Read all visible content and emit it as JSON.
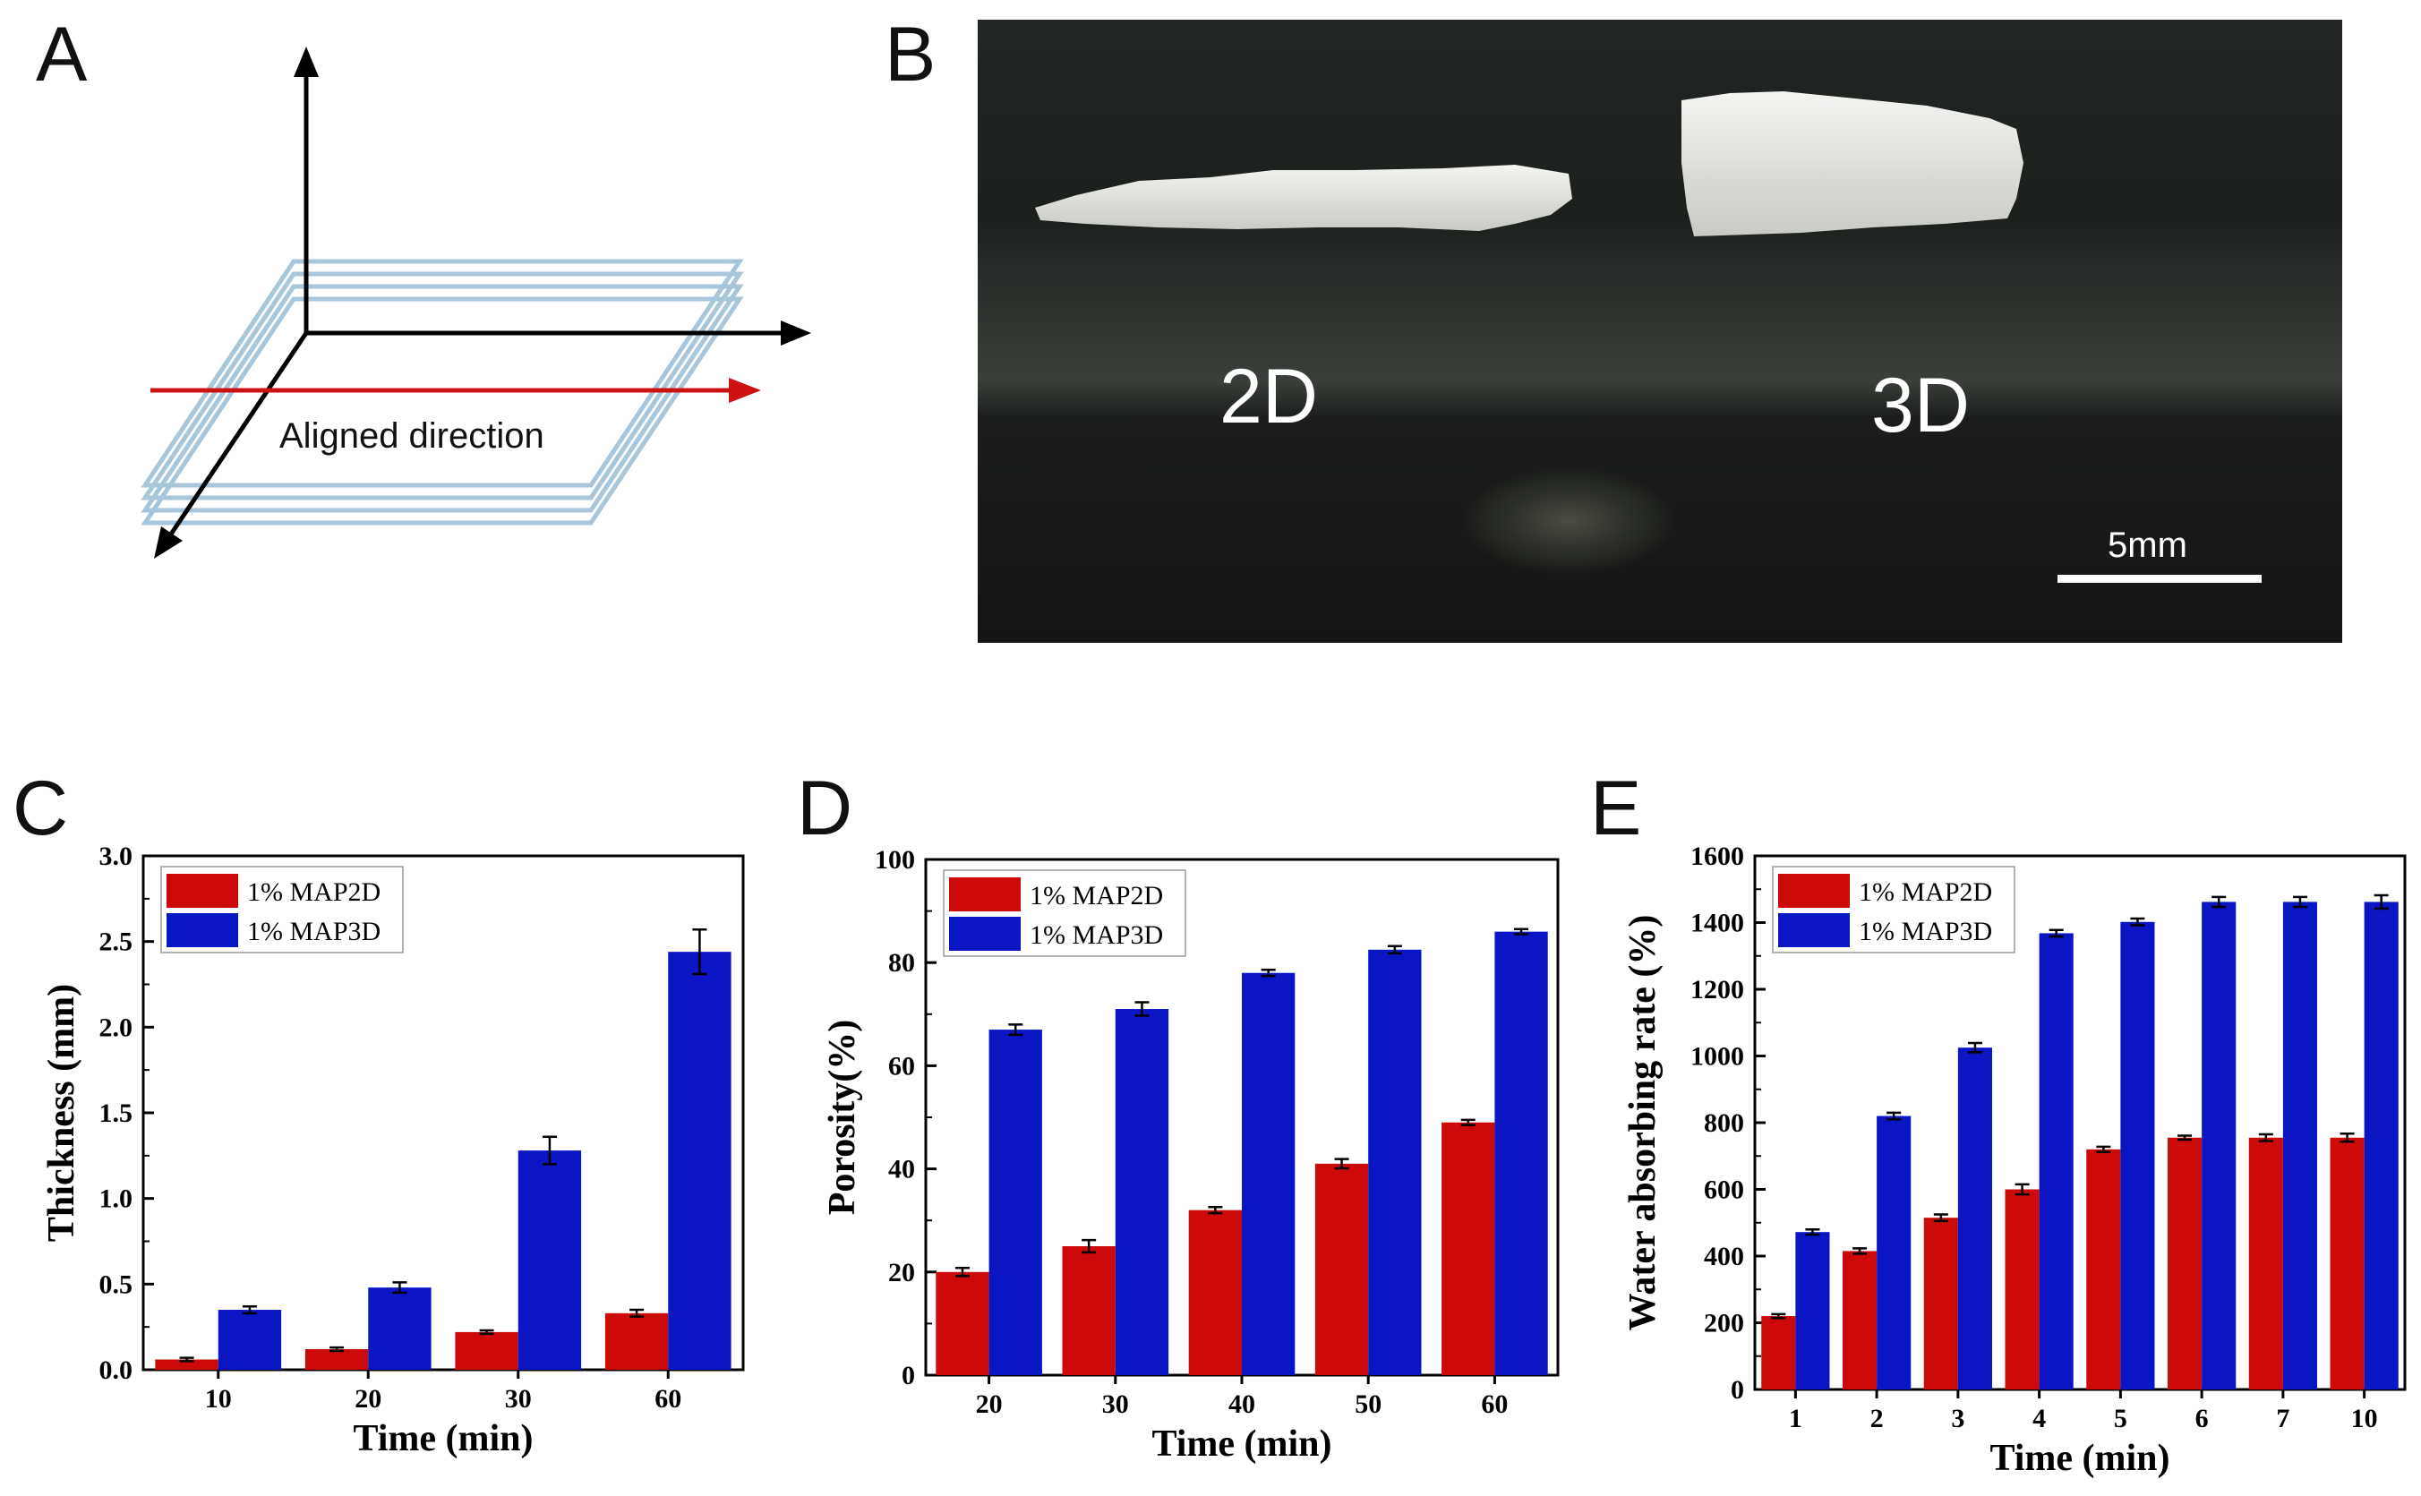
{
  "panels": {
    "a": {
      "letter": "A",
      "label": "Aligned direction"
    },
    "b": {
      "letter": "B",
      "label_2d": "2D",
      "label_3d": "3D",
      "scale_label": "5mm"
    },
    "c": {
      "letter": "C"
    },
    "d": {
      "letter": "D"
    },
    "e": {
      "letter": "E"
    }
  },
  "colors": {
    "red_series": "#cc0a0a",
    "blue_series": "#0a16c4",
    "arrow_red": "#cc1111",
    "plane_blue": "#a7c6dc",
    "axis": "#000000"
  },
  "chart_data": [
    {
      "id": "C",
      "type": "bar",
      "categories": [
        "10",
        "20",
        "30",
        "60"
      ],
      "series": [
        {
          "name": "1% MAP2D",
          "values": [
            0.06,
            0.12,
            0.22,
            0.33
          ],
          "errors": [
            0.01,
            0.01,
            0.01,
            0.02
          ]
        },
        {
          "name": "1% MAP3D",
          "values": [
            0.35,
            0.48,
            1.28,
            2.44
          ],
          "errors": [
            0.02,
            0.03,
            0.08,
            0.13
          ]
        }
      ],
      "xlabel": "Time (min)",
      "ylabel": "Thickness (mm)",
      "ylim": [
        0,
        3.0
      ],
      "yticks": [
        "0.0",
        "0.5",
        "1.0",
        "1.5",
        "2.0",
        "2.5",
        "3.0"
      ],
      "legend": "top-left",
      "grid": false
    },
    {
      "id": "D",
      "type": "bar",
      "categories": [
        "20",
        "30",
        "40",
        "50",
        "60"
      ],
      "series": [
        {
          "name": "1% MAP2D",
          "values": [
            20,
            25,
            32,
            41,
            49
          ],
          "errors": [
            0.8,
            1.2,
            0.6,
            0.9,
            0.5
          ]
        },
        {
          "name": "1% MAP3D",
          "values": [
            67,
            71,
            78,
            82.5,
            86
          ],
          "errors": [
            1.0,
            1.3,
            0.6,
            0.7,
            0.5
          ]
        }
      ],
      "xlabel": "Time (min)",
      "ylabel": "Porosity(%)",
      "ylim": [
        0,
        100
      ],
      "yticks": [
        "0",
        "20",
        "40",
        "60",
        "80",
        "100"
      ],
      "legend": "top-left",
      "grid": false
    },
    {
      "id": "E",
      "type": "bar",
      "categories": [
        "1",
        "2",
        "3",
        "4",
        "5",
        "6",
        "7",
        "10"
      ],
      "series": [
        {
          "name": "1% MAP2D",
          "values": [
            220,
            415,
            515,
            600,
            720,
            755,
            755,
            755
          ],
          "errors": [
            6,
            8,
            10,
            15,
            8,
            6,
            10,
            12
          ]
        },
        {
          "name": "1% MAP3D",
          "values": [
            472,
            820,
            1025,
            1368,
            1402,
            1462,
            1462,
            1462
          ],
          "errors": [
            8,
            10,
            14,
            10,
            10,
            15,
            15,
            20
          ]
        }
      ],
      "xlabel": "Time (min)",
      "ylabel": "Water absorbing rate (%)",
      "ylim": [
        0,
        1600
      ],
      "yticks": [
        "0",
        "200",
        "400",
        "600",
        "800",
        "1000",
        "1200",
        "1400",
        "1600"
      ],
      "legend": "top-left",
      "grid": false
    }
  ]
}
